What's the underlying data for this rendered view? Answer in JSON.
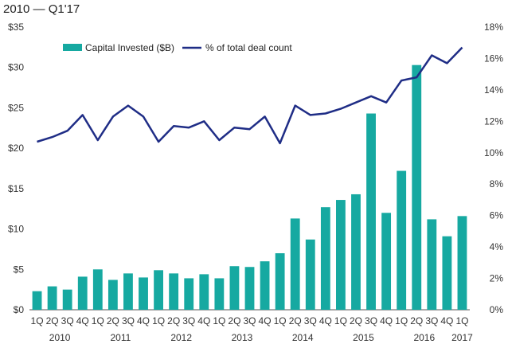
{
  "chart_data": {
    "type": "bar",
    "title": "2010 — Q1'17",
    "xlabel": "",
    "ylabel": "",
    "categories": [
      "1Q",
      "2Q",
      "3Q",
      "4Q",
      "1Q",
      "2Q",
      "3Q",
      "4Q",
      "1Q",
      "2Q",
      "3Q",
      "4Q",
      "1Q",
      "2Q",
      "3Q",
      "4Q",
      "1Q",
      "2Q",
      "3Q",
      "4Q",
      "1Q",
      "2Q",
      "3Q",
      "4Q",
      "1Q",
      "2Q",
      "3Q",
      "4Q",
      "1Q"
    ],
    "years": [
      {
        "label": "2010",
        "start": 0,
        "count": 4
      },
      {
        "label": "2011",
        "start": 4,
        "count": 4
      },
      {
        "label": "2012",
        "start": 8,
        "count": 4
      },
      {
        "label": "2013",
        "start": 12,
        "count": 4
      },
      {
        "label": "2014",
        "start": 16,
        "count": 4
      },
      {
        "label": "2015",
        "start": 20,
        "count": 4
      },
      {
        "label": "2016",
        "start": 24,
        "count": 4
      },
      {
        "label": "2017",
        "start": 28,
        "count": 1
      }
    ],
    "series": [
      {
        "name": "Capital Invested ($B)",
        "kind": "bar",
        "axis": "left",
        "color": "#16a9a1",
        "values": [
          2.3,
          2.9,
          2.5,
          4.1,
          5.0,
          3.7,
          4.5,
          4.0,
          4.9,
          4.5,
          3.9,
          4.4,
          3.9,
          5.4,
          5.3,
          6.0,
          7.0,
          11.3,
          8.7,
          12.7,
          13.6,
          14.3,
          24.3,
          12.0,
          17.2,
          30.3,
          11.2,
          9.1,
          11.6
        ]
      },
      {
        "name": "% of total deal count",
        "kind": "line",
        "axis": "right",
        "color": "#1f2d86",
        "values": [
          10.7,
          11.0,
          11.4,
          12.4,
          10.8,
          12.3,
          13.0,
          12.3,
          10.7,
          11.7,
          11.6,
          12.0,
          10.8,
          11.6,
          11.5,
          12.3,
          10.6,
          13.0,
          12.4,
          12.5,
          12.8,
          13.2,
          13.6,
          13.2,
          14.6,
          14.8,
          16.2,
          15.7,
          16.7
        ]
      }
    ],
    "ylim": [
      0,
      35
    ],
    "y_ticks": [
      "$0",
      "$5",
      "$10",
      "$15",
      "$20",
      "$25",
      "$30",
      "$35"
    ],
    "y2lim": [
      0,
      18
    ],
    "y2_ticks": [
      "0%",
      "2%",
      "4%",
      "6%",
      "8%",
      "10%",
      "12%",
      "14%",
      "16%",
      "18%"
    ],
    "grid": false,
    "legend_position": "top-left"
  }
}
